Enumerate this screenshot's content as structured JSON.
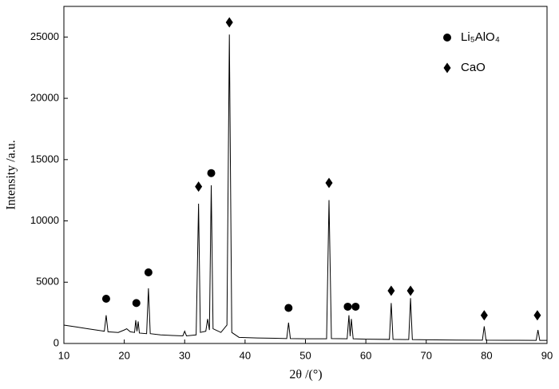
{
  "chart_data": {
    "type": "line",
    "x_label": "2θ /(°)",
    "y_label": "Intensity /a.u.",
    "x": [
      10,
      12,
      14,
      16,
      16.7,
      17,
      17.3,
      19,
      20,
      20.4,
      21,
      21.7,
      21.9,
      22.1,
      22.3,
      22.5,
      23.7,
      24,
      24.3,
      26,
      28,
      29.7,
      30,
      30.3,
      31.9,
      32.3,
      32.6,
      33.5,
      33.8,
      34.1,
      34.4,
      34.7,
      36,
      37,
      37.4,
      37.8,
      39,
      42,
      45,
      46.9,
      47.2,
      47.5,
      50,
      53.5,
      53.9,
      54.3,
      56.9,
      57.2,
      57.4,
      57.6,
      57.9,
      60,
      63.9,
      64.2,
      64.5,
      67.1,
      67.4,
      67.7,
      70,
      75,
      79.3,
      79.6,
      79.9,
      85,
      88.2,
      88.5,
      88.8,
      90
    ],
    "values": [
      1500,
      1350,
      1200,
      1050,
      1000,
      2300,
      950,
      900,
      1100,
      1200,
      950,
      900,
      1900,
      1000,
      1800,
      850,
      800,
      4500,
      800,
      700,
      650,
      620,
      1000,
      620,
      700,
      11400,
      900,
      1000,
      2000,
      1100,
      12900,
      1200,
      900,
      1500,
      25200,
      900,
      500,
      450,
      420,
      400,
      1700,
      400,
      380,
      380,
      11700,
      400,
      380,
      2300,
      600,
      2000,
      380,
      350,
      330,
      3300,
      330,
      320,
      3700,
      320,
      300,
      280,
      270,
      1400,
      270,
      260,
      250,
      1100,
      250,
      250
    ],
    "color": "#000000",
    "markers": [
      {
        "name": "Li₅AlO₄",
        "symbol": "circle",
        "color": "#000000",
        "x": [
          17,
          22,
          24,
          34.4,
          47.2,
          57,
          58.3
        ],
        "values": [
          3650,
          3300,
          5800,
          13900,
          2900,
          3000,
          3000
        ]
      },
      {
        "name": "CaO",
        "symbol": "diamond",
        "color": "#000000",
        "x": [
          32.3,
          37.4,
          53.9,
          64.2,
          67.4,
          79.6,
          88.4
        ],
        "values": [
          12800,
          26200,
          13100,
          4300,
          4300,
          2300,
          2300
        ]
      }
    ],
    "xlim": [
      10,
      90
    ],
    "ylim": [
      0,
      27500
    ],
    "xticks": [
      10,
      20,
      30,
      40,
      50,
      60,
      70,
      80,
      90
    ],
    "yticks": [
      0,
      5000,
      10000,
      15000,
      20000,
      25000
    ]
  }
}
